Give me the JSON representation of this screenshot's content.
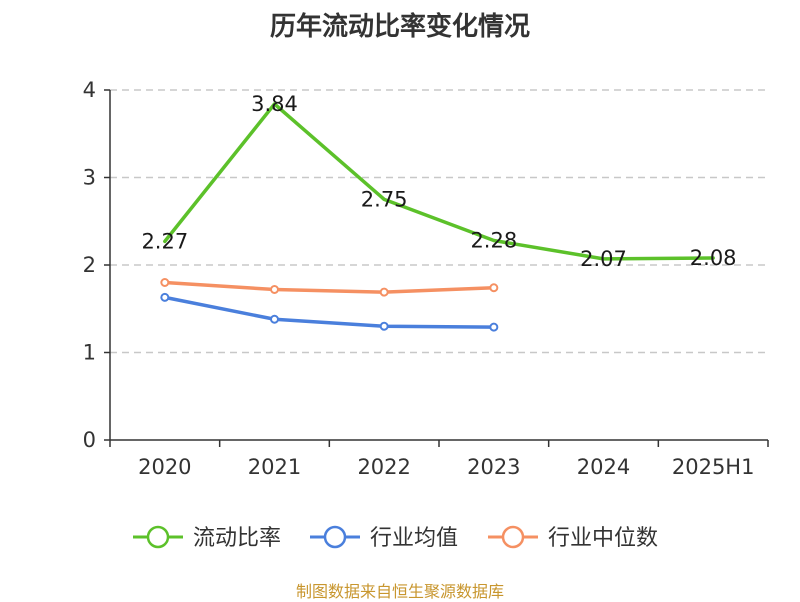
{
  "title": "历年流动比率变化情况",
  "source": "制图数据来自恒生聚源数据库",
  "chart_data": {
    "type": "line",
    "categories": [
      "2020",
      "2021",
      "2022",
      "2023",
      "2024",
      "2025H1"
    ],
    "ylim": [
      0,
      4
    ],
    "yticks": [
      0,
      1,
      2,
      3,
      4
    ],
    "grid": true,
    "legend_position": "bottom",
    "series": [
      {
        "name": "流动比率",
        "color": "#5cc12a",
        "values": [
          2.27,
          3.84,
          2.75,
          2.28,
          2.07,
          2.08
        ],
        "labels": [
          "2.27",
          "3.84",
          "2.75",
          "2.28",
          "2.07",
          "2.08"
        ],
        "show_labels": true
      },
      {
        "name": "行业均值",
        "color": "#4a7fdc",
        "values": [
          1.63,
          1.38,
          1.3,
          1.29,
          null,
          null
        ],
        "show_labels": false
      },
      {
        "name": "行业中位数",
        "color": "#f59062",
        "values": [
          1.8,
          1.72,
          1.69,
          1.74,
          null,
          null
        ],
        "show_labels": false
      }
    ]
  }
}
